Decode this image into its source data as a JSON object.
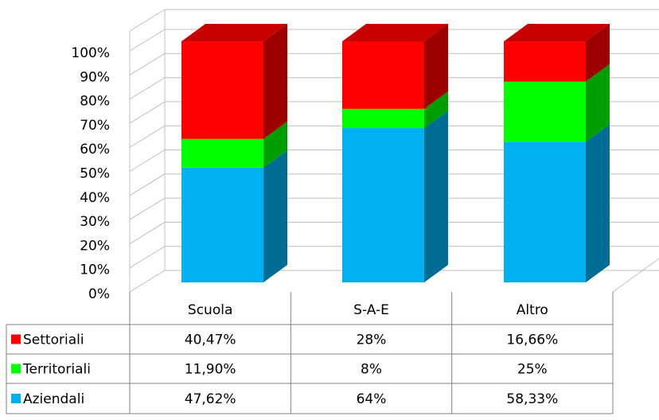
{
  "chart_data": {
    "type": "bar3d_stacked_table",
    "categories": [
      "Scuola",
      "S-A-E",
      "Altro"
    ],
    "series": [
      {
        "name": "Aziendali",
        "color": "#00b0f0",
        "values": [
          47.62,
          64,
          58.33
        ],
        "value_labels": [
          "47,62%",
          "64%",
          "58,33%"
        ]
      },
      {
        "name": "Territoriali",
        "color": "#00ff00",
        "values": [
          11.9,
          8,
          25
        ],
        "value_labels": [
          "11,90%",
          "8%",
          "25%"
        ]
      },
      {
        "name": "Settoriali",
        "color": "#ff0000",
        "values": [
          40.47,
          28,
          16.66
        ],
        "value_labels": [
          "40,47%",
          "28%",
          "16,66%"
        ]
      }
    ],
    "ylim": [
      0,
      100
    ],
    "yticks": [
      {
        "value": 0,
        "label": "0%"
      },
      {
        "value": 10,
        "label": "10%"
      },
      {
        "value": 20,
        "label": "20%"
      },
      {
        "value": 30,
        "label": "30%"
      },
      {
        "value": 40,
        "label": "40%"
      },
      {
        "value": 50,
        "label": "50%"
      },
      {
        "value": 60,
        "label": "60%"
      },
      {
        "value": 70,
        "label": "70%"
      },
      {
        "value": 80,
        "label": "80%"
      },
      {
        "value": 90,
        "label": "90%"
      },
      {
        "value": 100,
        "label": "100%"
      }
    ],
    "grid": true
  }
}
